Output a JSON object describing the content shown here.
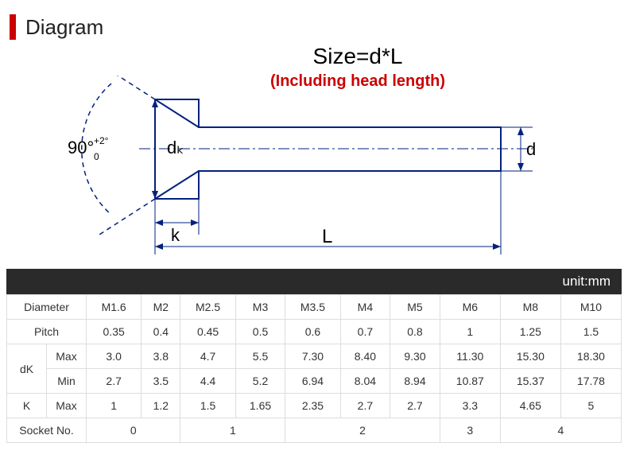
{
  "header": {
    "title": "Diagram"
  },
  "formula": {
    "main": "Size=d*L",
    "sub": "(Including head length)"
  },
  "diagram": {
    "angle_label": "90°",
    "angle_tol_top": "+2°",
    "angle_tol_bot": "0",
    "dk_label": "dₖ",
    "k_label": "k",
    "L_label": "L",
    "d_label": "d",
    "line_color": "#02217e",
    "text_color": "#000000"
  },
  "table": {
    "unit_label": "unit:mm",
    "headers": {
      "diameter": "Diameter",
      "pitch": "Pitch",
      "dk": "dK",
      "max": "Max",
      "min": "Min",
      "k": "K",
      "socket": "Socket No."
    },
    "diameter_cols": [
      "M1.6",
      "M2",
      "M2.5",
      "M3",
      "M3.5",
      "M4",
      "M5",
      "M6",
      "M8",
      "M10"
    ],
    "pitch": [
      "0.35",
      "0.4",
      "0.45",
      "0.5",
      "0.6",
      "0.7",
      "0.8",
      "1",
      "1.25",
      "1.5"
    ],
    "dk_max": [
      "3.0",
      "3.8",
      "4.7",
      "5.5",
      "7.30",
      "8.40",
      "9.30",
      "11.30",
      "15.30",
      "18.30"
    ],
    "dk_min": [
      "2.7",
      "3.5",
      "4.4",
      "5.2",
      "6.94",
      "8.04",
      "8.94",
      "10.87",
      "15.37",
      "17.78"
    ],
    "k_max": [
      "1",
      "1.2",
      "1.5",
      "1.65",
      "2.35",
      "2.7",
      "2.7",
      "3.3",
      "4.65",
      "5"
    ],
    "socket": [
      {
        "span": 2,
        "val": "0"
      },
      {
        "span": 2,
        "val": "1"
      },
      {
        "span": 3,
        "val": "2"
      },
      {
        "span": 1,
        "val": "3"
      },
      {
        "span": 2,
        "val": "4"
      }
    ]
  }
}
